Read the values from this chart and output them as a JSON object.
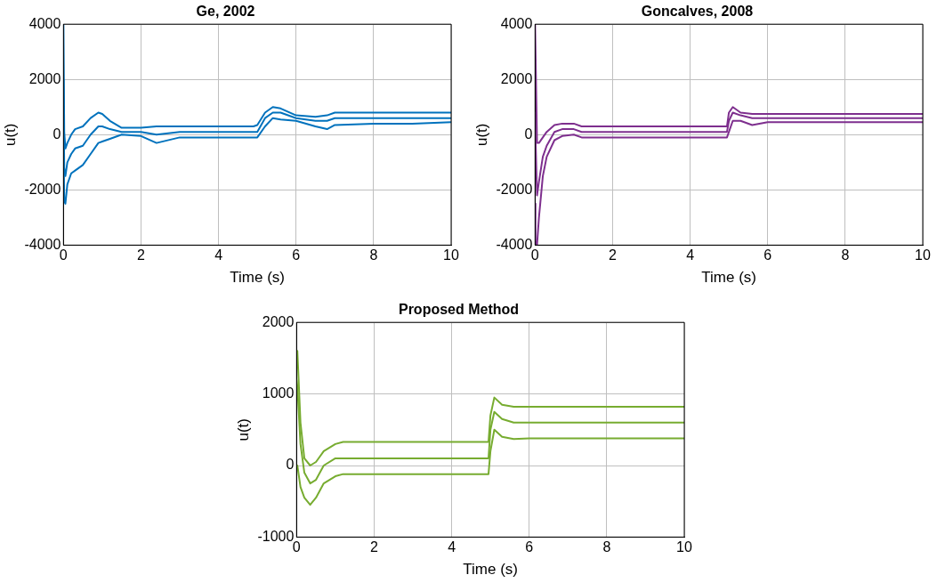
{
  "chart_data": [
    {
      "type": "line",
      "title": "Ge, 2002",
      "xlabel": "Time (s)",
      "ylabel": "u(t)",
      "xlim": [
        0,
        10
      ],
      "xticks": [
        0,
        2,
        4,
        6,
        8,
        10
      ],
      "ylim": [
        -4000,
        4000
      ],
      "yticks": [
        -4000,
        -2000,
        0,
        2000,
        4000
      ],
      "grid": true,
      "legend": false,
      "marker": "none",
      "line_style": "solid",
      "x": [
        0,
        0.02,
        0.05,
        0.1,
        0.2,
        0.3,
        0.5,
        0.7,
        0.9,
        1.0,
        1.2,
        1.5,
        2,
        2.4,
        3,
        4,
        4.9,
        5.0,
        5.2,
        5.4,
        5.6,
        6,
        6.5,
        6.8,
        7,
        8,
        9,
        10
      ],
      "series": [
        {
          "color": "#0072bd",
          "values": [
            4000,
            100,
            -500,
            -300,
            0,
            200,
            300,
            600,
            800,
            750,
            500,
            250,
            250,
            300,
            300,
            300,
            300,
            350,
            800,
            1000,
            950,
            700,
            650,
            700,
            800,
            800,
            800,
            800
          ]
        },
        {
          "color": "#0072bd",
          "values": [
            2000,
            -1200,
            -1500,
            -1000,
            -700,
            -500,
            -400,
            0,
            300,
            300,
            200,
            100,
            100,
            0,
            100,
            100,
            100,
            100,
            600,
            800,
            800,
            600,
            500,
            500,
            600,
            600,
            600,
            600
          ]
        },
        {
          "color": "#0072bd",
          "values": [
            0,
            -2400,
            -2500,
            -1800,
            -1400,
            -1300,
            -1100,
            -700,
            -300,
            -250,
            -150,
            0,
            -50,
            -300,
            -100,
            -100,
            -100,
            -100,
            300,
            600,
            550,
            500,
            300,
            200,
            350,
            400,
            400,
            450
          ]
        }
      ]
    },
    {
      "type": "line",
      "title": "Goncalves, 2008",
      "xlabel": "Time (s)",
      "ylabel": "u(t)",
      "xlim": [
        0,
        10
      ],
      "xticks": [
        0,
        2,
        4,
        6,
        8,
        10
      ],
      "ylim": [
        -4000,
        4000
      ],
      "yticks": [
        -4000,
        -2000,
        0,
        2000,
        4000
      ],
      "grid": true,
      "legend": false,
      "marker": "none",
      "line_style": "solid",
      "x": [
        0,
        0.01,
        0.05,
        0.1,
        0.2,
        0.3,
        0.5,
        0.7,
        1.0,
        1.2,
        2,
        4,
        4.95,
        5.0,
        5.1,
        5.3,
        5.6,
        6,
        8,
        10
      ],
      "series": [
        {
          "color": "#7e2f8e",
          "values": [
            4000,
            4000,
            -300,
            -300,
            -100,
            100,
            350,
            400,
            400,
            300,
            300,
            300,
            300,
            800,
            1000,
            800,
            750,
            750,
            750,
            750
          ]
        },
        {
          "color": "#7e2f8e",
          "values": [
            800,
            0,
            -2200,
            -1700,
            -800,
            -400,
            100,
            200,
            200,
            100,
            100,
            100,
            100,
            500,
            800,
            700,
            600,
            600,
            600,
            600
          ]
        },
        {
          "color": "#7e2f8e",
          "values": [
            -2500,
            -4000,
            -4000,
            -3000,
            -1500,
            -800,
            -200,
            -50,
            0,
            -100,
            -100,
            -100,
            -100,
            100,
            500,
            500,
            350,
            450,
            450,
            450
          ]
        }
      ]
    },
    {
      "type": "line",
      "title": "Proposed Method",
      "xlabel": "Time (s)",
      "ylabel": "u(t)",
      "xlim": [
        0,
        10
      ],
      "xticks": [
        0,
        2,
        4,
        6,
        8,
        10
      ],
      "ylim": [
        -1000,
        2000
      ],
      "yticks": [
        -1000,
        0,
        1000,
        2000
      ],
      "grid": true,
      "legend": false,
      "marker": "none",
      "line_style": "solid",
      "x": [
        0,
        0.02,
        0.1,
        0.2,
        0.35,
        0.5,
        0.7,
        1.0,
        1.2,
        1.5,
        4.95,
        5.0,
        5.1,
        5.3,
        5.6,
        6,
        10
      ],
      "series": [
        {
          "color": "#77ac30",
          "values": [
            1600,
            1600,
            600,
            100,
            0,
            50,
            200,
            300,
            330,
            330,
            330,
            700,
            950,
            850,
            820,
            820,
            820
          ]
        },
        {
          "color": "#77ac30",
          "values": [
            1200,
            1100,
            300,
            -100,
            -250,
            -200,
            0,
            100,
            100,
            100,
            100,
            500,
            750,
            650,
            600,
            600,
            600
          ]
        },
        {
          "color": "#77ac30",
          "values": [
            0,
            0,
            -300,
            -450,
            -550,
            -450,
            -250,
            -150,
            -120,
            -120,
            -120,
            200,
            500,
            400,
            370,
            380,
            380
          ]
        }
      ]
    }
  ]
}
